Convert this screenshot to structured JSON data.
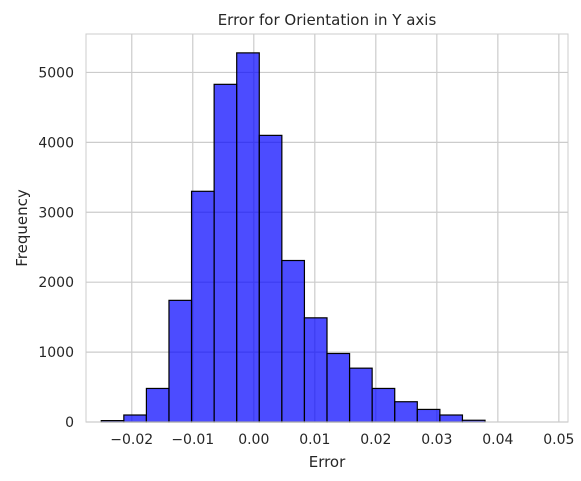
{
  "chart_data": {
    "type": "bar",
    "title": "Error for Orientation in Y axis",
    "xlabel": "Error",
    "ylabel": "Frequency",
    "xlim": [
      -0.0275,
      0.0515
    ],
    "ylim": [
      0,
      5550
    ],
    "grid": true,
    "bar_color": "#0000ff",
    "bar_edge_color": "#000000",
    "bins": [
      {
        "start": -0.025,
        "end": -0.0213,
        "count": 20
      },
      {
        "start": -0.0213,
        "end": -0.0176,
        "count": 100
      },
      {
        "start": -0.0176,
        "end": -0.0139,
        "count": 480
      },
      {
        "start": -0.0139,
        "end": -0.0102,
        "count": 1740
      },
      {
        "start": -0.0102,
        "end": -0.0065,
        "count": 3300
      },
      {
        "start": -0.0065,
        "end": -0.0028,
        "count": 4830
      },
      {
        "start": -0.0028,
        "end": 0.0009,
        "count": 5280
      },
      {
        "start": 0.0009,
        "end": 0.0046,
        "count": 4100
      },
      {
        "start": 0.0046,
        "end": 0.0083,
        "count": 2310
      },
      {
        "start": 0.0083,
        "end": 0.012,
        "count": 1490
      },
      {
        "start": 0.012,
        "end": 0.0157,
        "count": 980
      },
      {
        "start": 0.0157,
        "end": 0.0194,
        "count": 770
      },
      {
        "start": 0.0194,
        "end": 0.0231,
        "count": 480
      },
      {
        "start": 0.0231,
        "end": 0.0268,
        "count": 290
      },
      {
        "start": 0.0268,
        "end": 0.0305,
        "count": 180
      },
      {
        "start": 0.0305,
        "end": 0.0342,
        "count": 100
      },
      {
        "start": 0.0342,
        "end": 0.0379,
        "count": 25
      }
    ],
    "x_ticks": [
      {
        "value": -0.02,
        "label": "−0.02"
      },
      {
        "value": -0.01,
        "label": "−0.01"
      },
      {
        "value": 0.0,
        "label": "0.00"
      },
      {
        "value": 0.01,
        "label": "0.01"
      },
      {
        "value": 0.02,
        "label": "0.02"
      },
      {
        "value": 0.03,
        "label": "0.03"
      },
      {
        "value": 0.04,
        "label": "0.04"
      },
      {
        "value": 0.05,
        "label": "0.05"
      }
    ],
    "y_ticks": [
      {
        "value": 0,
        "label": "0"
      },
      {
        "value": 1000,
        "label": "1000"
      },
      {
        "value": 2000,
        "label": "2000"
      },
      {
        "value": 3000,
        "label": "3000"
      },
      {
        "value": 4000,
        "label": "4000"
      },
      {
        "value": 5000,
        "label": "5000"
      }
    ]
  }
}
